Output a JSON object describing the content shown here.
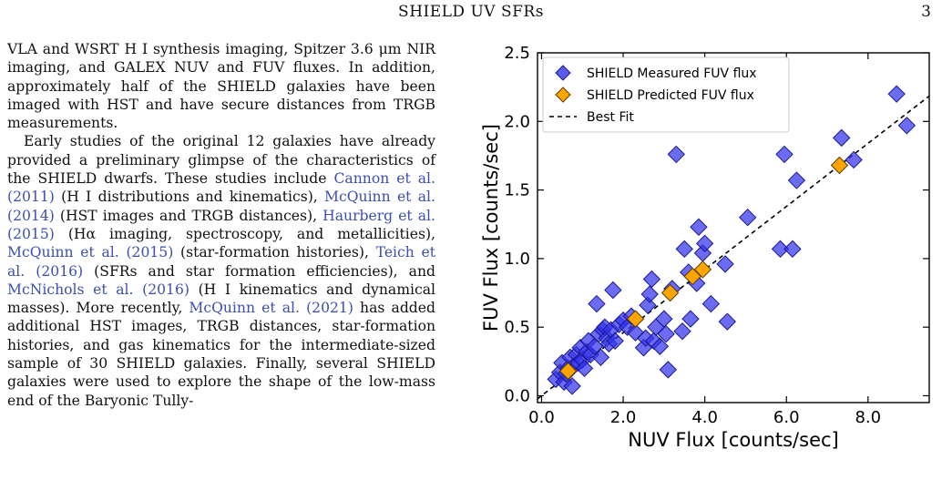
{
  "header": {
    "running_title": "SHIELD UV SFRs",
    "page_number": "3"
  },
  "body": {
    "paragraph1": "VLA and WSRT H I synthesis imaging, Spitzer 3.6 μm NIR imaging, and GALEX NUV and FUV fluxes. In addition, approximately half of the SHIELD galaxies have been imaged with HST and have secure distances from TRGB measurements.",
    "p2_lead": "Early studies of the original 12 galaxies have already provided a preliminary glimpse of the characteristics of the SHIELD dwarfs. These studies include ",
    "c1": "Cannon et al. (2011)",
    "t1": " (H I distributions and kinematics), ",
    "c2": "McQuinn et al. (2014)",
    "t2": " (HST images and TRGB distances), ",
    "c3": "Haurberg et al. (2015)",
    "t3": " (Hα imaging, spectroscopy, and metallicities), ",
    "c4": "McQuinn et al. (2015)",
    "t4": " (star-formation histories), ",
    "c5": "Teich et al. (2016)",
    "t5": " (SFRs and star formation efficiencies), and ",
    "c6": "McNichols et al. (2016)",
    "t6": " (H I kinematics and dynamical masses). More recently, ",
    "c7": "McQuinn et al. (2021)",
    "t7": " has added additional HST images, TRGB distances, star-formation histories, and gas kinematics for the intermediate-sized sample of 30 SHIELD galaxies. Finally, several SHIELD galaxies were used to explore the shape of the low-mass end of the Baryonic Tully-"
  },
  "chart_data": {
    "type": "scatter",
    "xlabel": "NUV Flux [counts/sec]",
    "ylabel": "FUV Flux [counts/sec]",
    "xlim": [
      -0.1,
      9.5
    ],
    "ylim": [
      -0.05,
      2.5
    ],
    "x_ticks": [
      "0.0",
      "2.0",
      "4.0",
      "6.0",
      "8.0"
    ],
    "y_ticks": [
      "0.0",
      "0.5",
      "1.0",
      "1.5",
      "2.0",
      "2.5"
    ],
    "legend_position": "top-left",
    "grid": false,
    "series": [
      {
        "name": "SHIELD Measured FUV flux",
        "marker": "diamond",
        "color": "#3333ee",
        "points": [
          [
            0.35,
            0.12
          ],
          [
            0.45,
            0.17
          ],
          [
            0.5,
            0.24
          ],
          [
            0.55,
            0.1
          ],
          [
            0.6,
            0.16
          ],
          [
            0.65,
            0.2
          ],
          [
            0.7,
            0.28
          ],
          [
            0.75,
            0.07
          ],
          [
            0.8,
            0.22
          ],
          [
            0.85,
            0.3
          ],
          [
            0.9,
            0.24
          ],
          [
            0.95,
            0.35
          ],
          [
            1.0,
            0.26
          ],
          [
            1.05,
            0.2
          ],
          [
            1.1,
            0.32
          ],
          [
            1.15,
            0.4
          ],
          [
            1.2,
            0.3
          ],
          [
            1.3,
            0.36
          ],
          [
            1.35,
            0.67
          ],
          [
            1.4,
            0.45
          ],
          [
            1.45,
            0.28
          ],
          [
            1.5,
            0.48
          ],
          [
            1.55,
            0.5
          ],
          [
            1.6,
            0.42
          ],
          [
            1.65,
            0.38
          ],
          [
            1.7,
            0.48
          ],
          [
            1.75,
            0.77
          ],
          [
            1.8,
            0.4
          ],
          [
            1.9,
            0.52
          ],
          [
            2.0,
            0.55
          ],
          [
            2.1,
            0.5
          ],
          [
            2.2,
            0.58
          ],
          [
            2.3,
            0.46
          ],
          [
            2.5,
            0.35
          ],
          [
            2.55,
            0.42
          ],
          [
            2.6,
            0.66
          ],
          [
            2.65,
            0.74
          ],
          [
            2.7,
            0.85
          ],
          [
            2.75,
            0.4
          ],
          [
            2.8,
            0.5
          ],
          [
            2.9,
            0.36
          ],
          [
            3.0,
            0.56
          ],
          [
            3.05,
            0.45
          ],
          [
            3.1,
            0.19
          ],
          [
            3.2,
            0.78
          ],
          [
            3.3,
            1.76
          ],
          [
            3.45,
            0.47
          ],
          [
            3.5,
            1.07
          ],
          [
            3.6,
            0.9
          ],
          [
            3.65,
            0.56
          ],
          [
            3.8,
            0.82
          ],
          [
            3.85,
            1.23
          ],
          [
            3.95,
            1.04
          ],
          [
            4.0,
            1.11
          ],
          [
            4.15,
            0.67
          ],
          [
            4.5,
            0.96
          ],
          [
            4.55,
            0.54
          ],
          [
            5.05,
            1.3
          ],
          [
            5.85,
            1.07
          ],
          [
            5.95,
            1.76
          ],
          [
            6.15,
            1.07
          ],
          [
            6.25,
            1.57
          ],
          [
            7.35,
            1.88
          ],
          [
            7.65,
            1.72
          ],
          [
            8.7,
            2.2
          ],
          [
            8.95,
            1.97
          ]
        ]
      },
      {
        "name": "SHIELD Predicted FUV flux",
        "marker": "diamond",
        "color": "#ffa500",
        "points": [
          [
            0.65,
            0.18
          ],
          [
            2.3,
            0.56
          ],
          [
            3.15,
            0.75
          ],
          [
            3.7,
            0.87
          ],
          [
            3.95,
            0.92
          ],
          [
            7.3,
            1.68
          ]
        ]
      },
      {
        "name": "Best Fit",
        "style": "dashed",
        "color": "#000000",
        "slope": 0.23,
        "intercept": 0.0
      }
    ]
  }
}
